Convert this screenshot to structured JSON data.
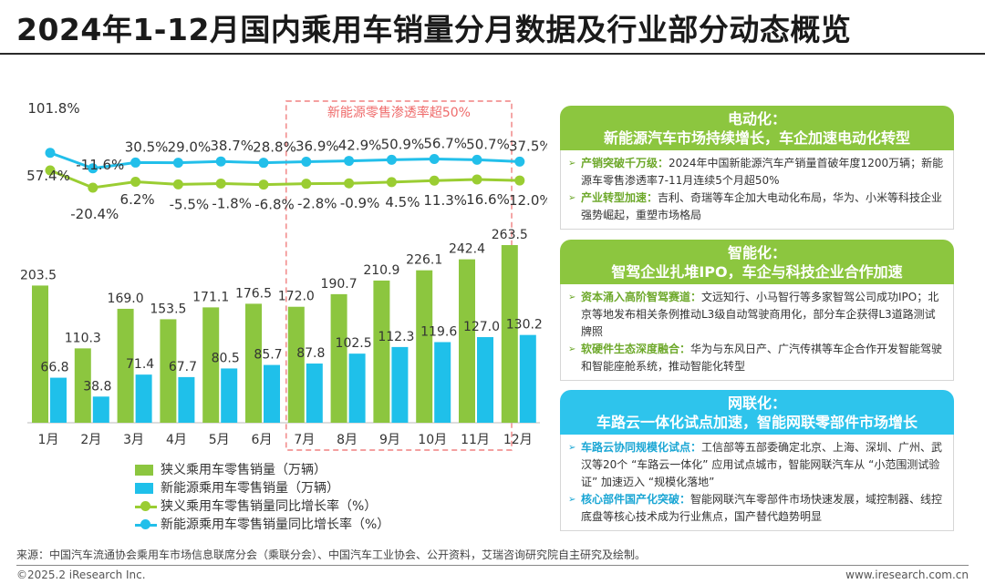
{
  "title": "2024年1-12月国内乘用车销量分月数据及行业部分动态概览",
  "chart_data": {
    "type": "bar",
    "categories": [
      "1月",
      "2月",
      "3月",
      "4月",
      "5月",
      "6月",
      "7月",
      "8月",
      "9月",
      "10月",
      "11月",
      "12月"
    ],
    "series": [
      {
        "name": "狭义乘用车零售销量（万辆）",
        "kind": "bar",
        "color": "#8cc63f",
        "values": [
          203.5,
          110.3,
          169.0,
          153.5,
          171.1,
          176.5,
          172.0,
          190.7,
          210.9,
          226.1,
          242.4,
          263.5
        ],
        "labels": [
          "203.5",
          "110.3",
          "169.0",
          "153.5",
          "171.1",
          "176.5",
          "172.0",
          "190.7",
          "210.9",
          "226.1",
          "242.4",
          "263.5"
        ]
      },
      {
        "name": "新能源乘用车零售销量（万辆）",
        "kind": "bar",
        "color": "#1fc0ea",
        "values": [
          66.8,
          38.8,
          71.4,
          67.7,
          80.5,
          85.7,
          87.8,
          102.5,
          112.3,
          119.6,
          127.0,
          130.2
        ],
        "labels": [
          "66.8",
          "38.8",
          "71.4",
          "67.7",
          "80.5",
          "85.7",
          "87.8",
          "102.5",
          "112.3",
          "119.6",
          "127.0",
          "130.2"
        ]
      },
      {
        "name": "狭义乘用车零售销量同比增长率（%）",
        "kind": "line",
        "color": "#9acd32",
        "values": [
          57.4,
          -20.4,
          6.2,
          -5.5,
          -1.8,
          -6.8,
          -2.8,
          -0.9,
          4.5,
          11.3,
          16.6,
          12.0
        ],
        "labels": [
          "57.4%",
          "-20.4%",
          "6.2%",
          "-5.5%",
          "-1.8%",
          "-6.8%",
          "-2.8%",
          "-0.9%",
          "4.5%",
          "11.3%",
          "16.6%",
          "12.0%"
        ]
      },
      {
        "name": "新能源乘用车零售销量同比增长率（%）",
        "kind": "line",
        "color": "#22bfea",
        "values": [
          101.8,
          -11.6,
          30.5,
          29.0,
          38.7,
          28.8,
          36.9,
          42.9,
          50.9,
          56.7,
          50.7,
          37.5
        ],
        "labels": [
          "101.8%",
          "-11.6%",
          "30.5%",
          "29.0%",
          "38.7%",
          "28.8%",
          "36.9%",
          "42.9%",
          "50.9%",
          "56.7%",
          "50.7%",
          "37.5%"
        ]
      }
    ],
    "annotation": "新能源零售渗透率超50%",
    "annotation_range": [
      "7月",
      "11月"
    ]
  },
  "legend": [
    {
      "label": "狭义乘用车零售销量（万辆）",
      "type": "bar",
      "color": "#8cc63f"
    },
    {
      "label": "新能源乘用车零售销量（万辆）",
      "type": "bar",
      "color": "#1fc0ea"
    },
    {
      "label": "狭义乘用车零售销量同比增长率（%）",
      "type": "line",
      "color": "#9acd32"
    },
    {
      "label": "新能源乘用车零售销量同比增长率（%）",
      "type": "line",
      "color": "#22bfea"
    }
  ],
  "panels": {
    "electrification": {
      "title": "电动化：",
      "subtitle": "新能源汽车市场持续增长，车企加速电动化转型",
      "items": [
        {
          "keyword": "产销突破千万级：",
          "text": "2024年中国新能源汽车产销量首破年度1200万辆；新能源车零售渗透率7-11月连续5个月超50%"
        },
        {
          "keyword": "产业转型加速：",
          "text": "吉利、奇瑞等车企加大电动化布局，华为、小米等科技企业强势崛起，重塑市场格局"
        }
      ]
    },
    "intelligence": {
      "title": "智能化：",
      "subtitle": "智驾企业扎堆IPO，车企与科技企业合作加速",
      "items": [
        {
          "keyword": "资本涌入高阶智驾赛道：",
          "text": "文远知行、小马智行等多家智驾公司成功IPO；北京等地发布相关条例推动L3级自动驾驶商用化，部分车企获得L3道路测试牌照"
        },
        {
          "keyword": "软硬件生态深度融合：",
          "text": "华为与东风日产、广汽传祺等车企合作开发智能驾驶和智能座舱系统，推动智能化转型"
        }
      ]
    },
    "connectivity": {
      "title": "网联化：",
      "subtitle": "车路云一体化试点加速，智能网联零部件市场增长",
      "items": [
        {
          "keyword": "车路云协同规模化试点：",
          "text": "工信部等五部委确定北京、上海、深圳、广州、武汉等20个 “车路云一体化” 应用试点城市，智能网联汽车从 “小范围测试验证” 加速迈入 “规模化落地”"
        },
        {
          "keyword": "核心部件国产化突破：",
          "text": "智能网联汽车零部件市场快速发展，域控制器、线控底盘等核心技术成为行业焦点，国产替代趋势明显"
        }
      ]
    }
  },
  "source": "来源：中国汽车流通协会乘用车市场信息联席分会（乘联分会）、中国汽车工业协会、公开资料，艾瑞咨询研究院自主研究及绘制。",
  "copyright": "©2025.2 iResearch Inc.",
  "website": "www.iresearch.com.cn"
}
